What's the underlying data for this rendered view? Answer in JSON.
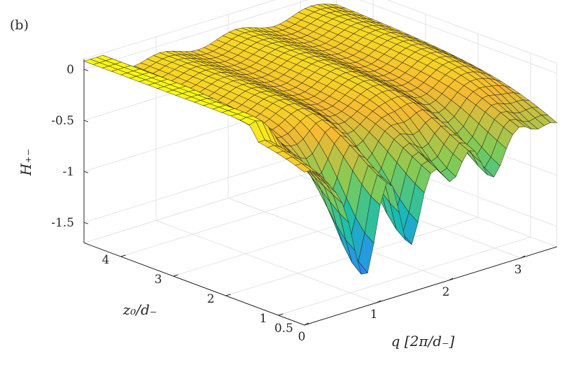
{
  "panel_label": "(b)",
  "chart_data": {
    "type": "surface",
    "zlabel": "H₊₋",
    "ylabel": "z₀/d₋",
    "xlabel": "q [2π/d₋]",
    "xlim": [
      0,
      3.5
    ],
    "ylim": [
      0.5,
      4.7
    ],
    "zlim": [
      -1.7,
      0.1
    ],
    "x_ticks": [
      0,
      1,
      2,
      3
    ],
    "x_tick_labels": [
      "0",
      "1",
      "2",
      "3"
    ],
    "y_ticks": [
      0.5,
      1,
      2,
      3,
      4
    ],
    "y_tick_labels": [
      "0.5",
      "1",
      "2",
      "3",
      "4"
    ],
    "z_ticks": [
      0,
      -0.5,
      -1,
      -1.5
    ],
    "z_tick_labels": [
      "0",
      "-0.5",
      "-1",
      "-1.5"
    ],
    "grid": true,
    "colormap": [
      "#3e26a8",
      "#2e87f7",
      "#18bdb0",
      "#80cb57",
      "#f5b932",
      "#f9fb15"
    ],
    "edge_color": "#1a1a1a"
  }
}
